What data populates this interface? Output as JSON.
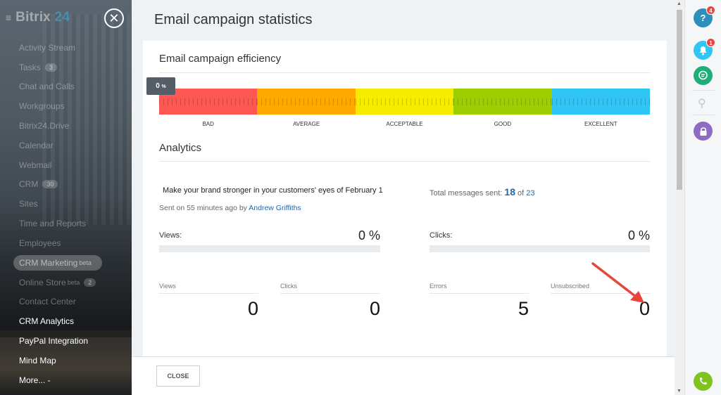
{
  "sidebar": {
    "logo": "Bitrix",
    "logo_num": "24",
    "items": [
      {
        "label": "Activity Stream"
      },
      {
        "label": "Tasks",
        "count": "3"
      },
      {
        "label": "Chat and Calls"
      },
      {
        "label": "Workgroups"
      },
      {
        "label": "Bitrix24.Drive"
      },
      {
        "label": "Calendar"
      },
      {
        "label": "Webmail"
      },
      {
        "label": "CRM",
        "count": "30"
      },
      {
        "label": "Sites"
      },
      {
        "label": "Time and Reports"
      },
      {
        "label": "Employees"
      },
      {
        "label": "CRM Marketing",
        "sup": "beta"
      },
      {
        "label": "Online Store",
        "sup": "beta",
        "count": "2"
      },
      {
        "label": "Contact Center"
      },
      {
        "label": "CRM Analytics"
      },
      {
        "label": "PayPal Integration"
      },
      {
        "label": "Mind Map"
      },
      {
        "label": "More... -"
      }
    ]
  },
  "panel": {
    "title": "Email campaign statistics",
    "efficiency_title": "Email campaign efficiency",
    "pointer_value": "0",
    "pointer_unit": "%",
    "efficiency_level": 0,
    "scale": [
      {
        "label": "BAD",
        "color": "#ff5752"
      },
      {
        "label": "AVERAGE",
        "color": "#ffa900"
      },
      {
        "label": "ACCEPTABLE",
        "color": "#f7eb00"
      },
      {
        "label": "GOOD",
        "color": "#9dcf00"
      },
      {
        "label": "EXCELLENT",
        "color": "#2fc6f6"
      }
    ],
    "analytics_title": "Analytics",
    "message_title": "Make your brand stronger in your customers' eyes of February 1",
    "sent_prefix": "Sent on 55 minutes ago by",
    "sent_by": "Andrew Griffiths",
    "total_label": "Total messages sent:",
    "total_sent": "18",
    "total_of": "of",
    "total_all": "23",
    "views_label": "Views:",
    "views_pct": "0 %",
    "clicks_label": "Clicks:",
    "clicks_pct": "0 %",
    "mini": [
      {
        "label": "Views",
        "value": "0"
      },
      {
        "label": "Clicks",
        "value": "0"
      },
      {
        "label": "Errors",
        "value": "5"
      },
      {
        "label": "Unsubscribed",
        "value": "0"
      }
    ],
    "close_label": "CLOSE"
  },
  "rightbar": {
    "help_badge": "4",
    "notify_badge": "1",
    "help_icon": "?",
    "search_icon": "⚲"
  }
}
